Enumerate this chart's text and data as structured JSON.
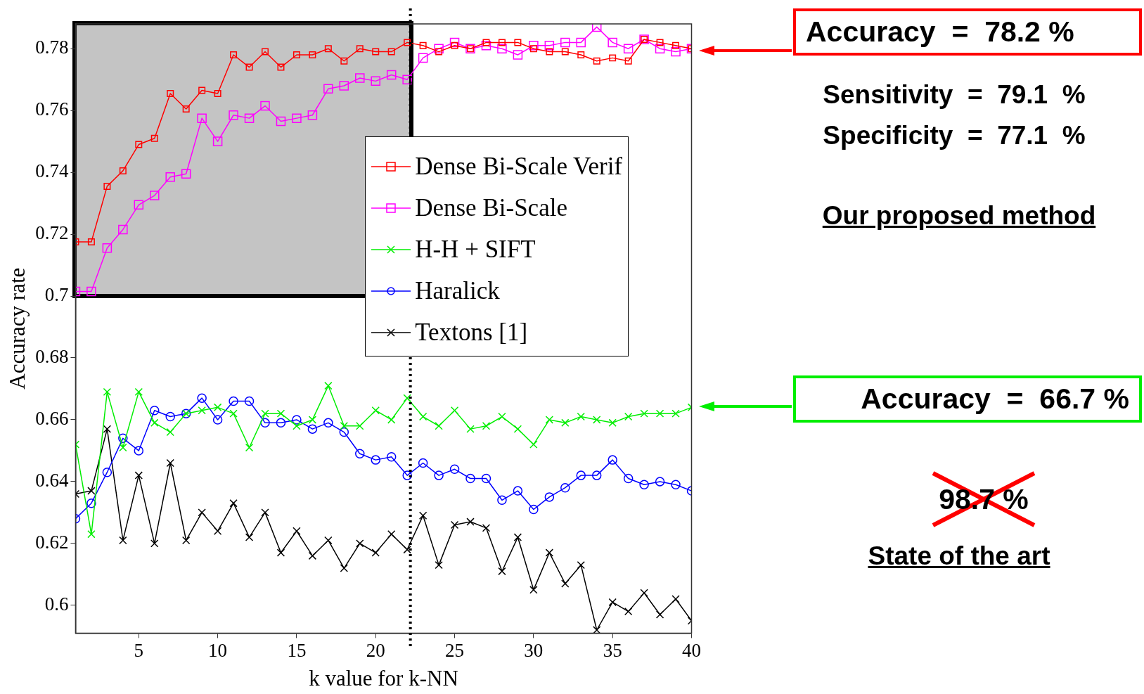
{
  "chart_data": {
    "type": "line",
    "xlabel": "k value for k-NN",
    "ylabel": "Accuracy rate",
    "x": [
      1,
      2,
      3,
      4,
      5,
      6,
      7,
      8,
      9,
      10,
      11,
      12,
      13,
      14,
      15,
      16,
      17,
      18,
      19,
      20,
      21,
      22,
      23,
      24,
      25,
      26,
      27,
      28,
      29,
      30,
      31,
      32,
      33,
      34,
      35,
      36,
      37,
      38,
      39,
      40
    ],
    "xlim": [
      1,
      40
    ],
    "xticks": [
      5,
      10,
      15,
      20,
      25,
      30,
      35,
      40
    ],
    "ylim": [
      0.591,
      0.788
    ],
    "yticks": [
      0.6,
      0.62,
      0.64,
      0.66,
      0.68,
      0.7,
      0.72,
      0.74,
      0.76,
      0.78
    ],
    "grid": false,
    "legend": "right",
    "line_style": "solid",
    "series": [
      {
        "name": "Dense Bi-Scale Verif",
        "color": "#ff0000",
        "marker": "square",
        "values": [
          0.7175,
          0.7175,
          0.7355,
          0.7405,
          0.749,
          0.751,
          0.7655,
          0.7605,
          0.7665,
          0.7655,
          0.778,
          0.774,
          0.779,
          0.774,
          0.778,
          0.778,
          0.78,
          0.776,
          0.78,
          0.779,
          0.779,
          0.782,
          0.781,
          0.779,
          0.781,
          0.78,
          0.782,
          0.782,
          0.782,
          0.78,
          0.779,
          0.779,
          0.778,
          0.776,
          0.777,
          0.776,
          0.783,
          0.782,
          0.781,
          0.78
        ]
      },
      {
        "name": "Dense Bi-Scale",
        "color": "#ff00ff",
        "marker": "square",
        "values": [
          0.7015,
          0.7015,
          0.7155,
          0.7215,
          0.7295,
          0.7325,
          0.7385,
          0.7395,
          0.7575,
          0.75,
          0.7585,
          0.7575,
          0.7615,
          0.7565,
          0.7575,
          0.7585,
          0.767,
          0.768,
          0.7705,
          0.7695,
          0.7715,
          0.77,
          0.777,
          0.78,
          0.782,
          0.78,
          0.781,
          0.78,
          0.778,
          0.781,
          0.781,
          0.782,
          0.782,
          0.787,
          0.782,
          0.78,
          0.783,
          0.78,
          0.779,
          0.78
        ]
      },
      {
        "name": "H-H + SIFT",
        "color": "#00ee00",
        "marker": "cross",
        "values": [
          0.652,
          0.623,
          0.669,
          0.651,
          0.669,
          0.659,
          0.656,
          0.662,
          0.663,
          0.664,
          0.662,
          0.651,
          0.662,
          0.662,
          0.658,
          0.66,
          0.671,
          0.658,
          0.658,
          0.663,
          0.66,
          0.667,
          0.661,
          0.658,
          0.663,
          0.657,
          0.658,
          0.661,
          0.657,
          0.652,
          0.66,
          0.659,
          0.661,
          0.66,
          0.659,
          0.661,
          0.662,
          0.662,
          0.662,
          0.664
        ]
      },
      {
        "name": "Haralick",
        "color": "#0000ff",
        "marker": "circle",
        "values": [
          0.628,
          0.633,
          0.643,
          0.654,
          0.65,
          0.663,
          0.661,
          0.662,
          0.667,
          0.66,
          0.666,
          0.666,
          0.659,
          0.659,
          0.66,
          0.657,
          0.659,
          0.656,
          0.649,
          0.647,
          0.648,
          0.642,
          0.646,
          0.642,
          0.644,
          0.641,
          0.641,
          0.634,
          0.637,
          0.631,
          0.635,
          0.638,
          0.642,
          0.642,
          0.647,
          0.641,
          0.639,
          0.64,
          0.639,
          0.637
        ]
      },
      {
        "name": "Textons [1]",
        "color": "#000000",
        "marker": "cross",
        "values": [
          0.636,
          0.637,
          0.657,
          0.621,
          0.642,
          0.62,
          0.646,
          0.621,
          0.63,
          0.624,
          0.633,
          0.622,
          0.63,
          0.617,
          0.624,
          0.616,
          0.621,
          0.612,
          0.62,
          0.617,
          0.623,
          0.618,
          0.629,
          0.613,
          0.626,
          0.627,
          0.625,
          0.611,
          0.622,
          0.605,
          0.617,
          0.607,
          0.613,
          0.592,
          0.601,
          0.598,
          0.604,
          0.597,
          0.602,
          0.595
        ]
      }
    ],
    "ref_lines": [
      {
        "axis": "x",
        "value": 22.2,
        "color": "#000000",
        "line_style": "dotted"
      }
    ],
    "annotations": [
      "Accuracy  =  78.2 %",
      "Sensitivity  =  79.1  %",
      "Specificity  =  77.1  %",
      "Our proposed method",
      "Accuracy  =  66.7 %",
      "98.7 %",
      "State of the art"
    ]
  }
}
